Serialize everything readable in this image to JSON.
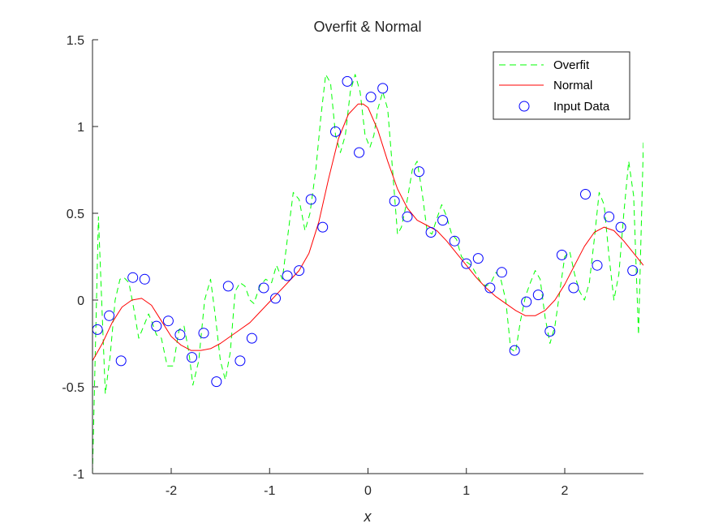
{
  "chart_data": {
    "type": "line",
    "title": "Overfit & Normal",
    "xlabel": "x",
    "ylabel": "",
    "xlim": [
      -2.8,
      2.8
    ],
    "ylim": [
      -1,
      1.5
    ],
    "xticks": [
      -2,
      -1,
      0,
      1,
      2
    ],
    "xtick_labels": [
      "-2",
      "-1",
      "0",
      "1",
      "2"
    ],
    "yticks": [
      -1,
      -0.5,
      0,
      0.5,
      1,
      1.5
    ],
    "ytick_labels": [
      "-1",
      "-0.5",
      "0",
      "0.5",
      "1",
      "1.5"
    ],
    "grid": false,
    "legend_position": "top-right",
    "series": [
      {
        "name": "Overfit",
        "style": "dashed",
        "color": "#00ff00",
        "x": [
          -2.8,
          -2.74,
          -2.7,
          -2.67,
          -2.62,
          -2.57,
          -2.52,
          -2.48,
          -2.43,
          -2.38,
          -2.33,
          -2.28,
          -2.23,
          -2.2,
          -2.15,
          -2.1,
          -2.04,
          -1.98,
          -1.92,
          -1.87,
          -1.82,
          -1.78,
          -1.72,
          -1.66,
          -1.6,
          -1.55,
          -1.5,
          -1.45,
          -1.4,
          -1.35,
          -1.3,
          -1.25,
          -1.2,
          -1.16,
          -1.1,
          -1.04,
          -0.98,
          -0.93,
          -0.87,
          -0.82,
          -0.76,
          -0.7,
          -0.64,
          -0.59,
          -0.53,
          -0.48,
          -0.43,
          -0.38,
          -0.33,
          -0.28,
          -0.23,
          -0.18,
          -0.13,
          -0.08,
          -0.03,
          0.02,
          0.06,
          0.1,
          0.15,
          0.2,
          0.25,
          0.3,
          0.34,
          0.4,
          0.45,
          0.5,
          0.55,
          0.6,
          0.65,
          0.7,
          0.75,
          0.8,
          0.85,
          0.9,
          0.95,
          1.0,
          1.05,
          1.1,
          1.15,
          1.2,
          1.25,
          1.3,
          1.35,
          1.4,
          1.45,
          1.5,
          1.55,
          1.6,
          1.65,
          1.7,
          1.75,
          1.8,
          1.85,
          1.9,
          1.95,
          2.0,
          2.05,
          2.1,
          2.15,
          2.2,
          2.25,
          2.3,
          2.35,
          2.4,
          2.45,
          2.5,
          2.55,
          2.6,
          2.65,
          2.7,
          2.75,
          2.8
        ],
        "y": [
          -1.0,
          0.48,
          -0.1,
          -0.54,
          -0.32,
          0.0,
          0.12,
          0.13,
          0.1,
          -0.05,
          -0.22,
          -0.15,
          -0.08,
          -0.12,
          -0.2,
          -0.22,
          -0.38,
          -0.38,
          -0.17,
          -0.15,
          -0.3,
          -0.49,
          -0.35,
          0.0,
          0.12,
          -0.1,
          -0.35,
          -0.46,
          -0.3,
          0.05,
          0.1,
          0.08,
          0.0,
          -0.02,
          0.08,
          0.12,
          0.1,
          0.2,
          0.12,
          0.35,
          0.62,
          0.58,
          0.4,
          0.5,
          0.75,
          1.05,
          1.3,
          1.25,
          0.95,
          0.85,
          0.95,
          1.2,
          1.3,
          1.2,
          0.95,
          0.88,
          0.95,
          1.1,
          1.2,
          1.1,
          0.75,
          0.38,
          0.42,
          0.58,
          0.75,
          0.8,
          0.62,
          0.4,
          0.38,
          0.47,
          0.55,
          0.48,
          0.38,
          0.35,
          0.25,
          0.22,
          0.2,
          0.15,
          0.1,
          0.08,
          0.1,
          0.16,
          0.12,
          0.0,
          -0.28,
          -0.3,
          -0.12,
          0.02,
          0.1,
          0.17,
          0.12,
          -0.1,
          -0.25,
          -0.15,
          0.05,
          0.25,
          0.28,
          0.15,
          0.05,
          0.0,
          0.1,
          0.35,
          0.62,
          0.55,
          0.25,
          0.0,
          0.15,
          0.5,
          0.8,
          0.6,
          -0.2,
          0.92
        ]
      },
      {
        "name": "Normal",
        "style": "solid",
        "color": "#ff0000",
        "x": [
          -2.8,
          -2.7,
          -2.6,
          -2.5,
          -2.4,
          -2.3,
          -2.2,
          -2.1,
          -2.0,
          -1.9,
          -1.8,
          -1.7,
          -1.6,
          -1.5,
          -1.4,
          -1.3,
          -1.2,
          -1.1,
          -1.0,
          -0.9,
          -0.8,
          -0.7,
          -0.6,
          -0.5,
          -0.4,
          -0.3,
          -0.2,
          -0.1,
          -0.05,
          0.0,
          0.1,
          0.2,
          0.3,
          0.4,
          0.5,
          0.6,
          0.7,
          0.8,
          0.9,
          1.0,
          1.1,
          1.2,
          1.3,
          1.4,
          1.5,
          1.6,
          1.7,
          1.8,
          1.9,
          2.0,
          2.1,
          2.2,
          2.3,
          2.4,
          2.5,
          2.6,
          2.7,
          2.8
        ],
        "y": [
          -0.35,
          -0.25,
          -0.13,
          -0.04,
          0.0,
          0.01,
          -0.03,
          -0.12,
          -0.21,
          -0.26,
          -0.29,
          -0.29,
          -0.28,
          -0.25,
          -0.21,
          -0.17,
          -0.13,
          -0.07,
          -0.01,
          0.05,
          0.11,
          0.17,
          0.27,
          0.45,
          0.7,
          0.93,
          1.07,
          1.13,
          1.13,
          1.11,
          0.98,
          0.8,
          0.64,
          0.53,
          0.46,
          0.43,
          0.4,
          0.34,
          0.27,
          0.2,
          0.13,
          0.07,
          0.02,
          -0.02,
          -0.06,
          -0.09,
          -0.09,
          -0.06,
          0.0,
          0.09,
          0.2,
          0.31,
          0.39,
          0.42,
          0.4,
          0.34,
          0.27,
          0.2
        ]
      },
      {
        "name": "Input Data",
        "style": "markers",
        "color": "#0000ff",
        "x": [
          -2.75,
          -2.63,
          -2.51,
          -2.39,
          -2.27,
          -2.15,
          -2.03,
          -1.91,
          -1.79,
          -1.67,
          -1.54,
          -1.42,
          -1.3,
          -1.18,
          -1.06,
          -0.94,
          -0.82,
          -0.7,
          -0.58,
          -0.46,
          -0.33,
          -0.21,
          -0.09,
          0.03,
          0.15,
          0.27,
          0.4,
          0.52,
          0.64,
          0.76,
          0.88,
          1.0,
          1.12,
          1.24,
          1.36,
          1.49,
          1.61,
          1.73,
          1.85,
          1.97,
          2.09,
          2.21,
          2.33,
          2.45,
          2.57,
          2.69
        ],
        "y": [
          -0.17,
          -0.09,
          -0.35,
          0.13,
          0.12,
          -0.15,
          -0.12,
          -0.2,
          -0.33,
          -0.19,
          -0.47,
          0.08,
          -0.35,
          -0.22,
          0.07,
          0.01,
          0.14,
          0.17,
          0.58,
          0.42,
          0.97,
          1.26,
          0.85,
          1.17,
          1.22,
          0.57,
          0.48,
          0.74,
          0.39,
          0.46,
          0.34,
          0.21,
          0.24,
          0.07,
          0.16,
          -0.29,
          -0.01,
          0.03,
          -0.18,
          0.26,
          0.07,
          0.61,
          0.2,
          0.48,
          0.42,
          0.17
        ]
      }
    ]
  }
}
